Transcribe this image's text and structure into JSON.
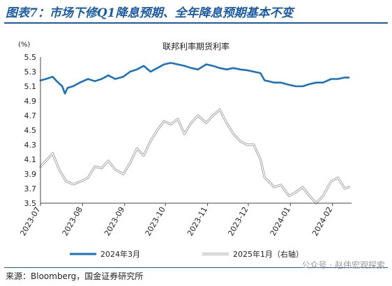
{
  "figure": {
    "title": "图表7：市场下修Q1降息预期、全年降息预期基本不变",
    "source": "来源：Bloomberg，国金证券研究所",
    "watermark": "公众号 · 赵伟宏观探索"
  },
  "chart_data": {
    "type": "line",
    "title": "联邦利率期货利率",
    "ylabel": "(%)",
    "ylim": [
      3.5,
      5.5
    ],
    "yticks": [
      3.5,
      3.7,
      3.9,
      4.1,
      4.3,
      4.5,
      4.7,
      4.9,
      5.1,
      5.3,
      5.5
    ],
    "xlim": [
      "2023-07-01",
      "2024-02-15"
    ],
    "xticks": [
      "2023-07",
      "2023-08",
      "2023-09",
      "2023-10",
      "2023-11",
      "2023-12",
      "2024-01",
      "2024-02"
    ],
    "grid": false,
    "legend_position": "bottom",
    "series": [
      {
        "name": "2024年3月",
        "color": "#1a72c0",
        "x": [
          "2023-07-01",
          "2023-07-05",
          "2023-07-10",
          "2023-07-13",
          "2023-07-17",
          "2023-07-19",
          "2023-07-21",
          "2023-07-25",
          "2023-07-30",
          "2023-08-05",
          "2023-08-10",
          "2023-08-15",
          "2023-08-20",
          "2023-08-25",
          "2023-08-31",
          "2023-09-05",
          "2023-09-10",
          "2023-09-15",
          "2023-09-20",
          "2023-09-25",
          "2023-09-30",
          "2023-10-05",
          "2023-10-10",
          "2023-10-15",
          "2023-10-20",
          "2023-10-25",
          "2023-10-31",
          "2023-11-05",
          "2023-11-10",
          "2023-11-15",
          "2023-11-20",
          "2023-11-25",
          "2023-11-30",
          "2023-12-05",
          "2023-12-10",
          "2023-12-13",
          "2023-12-16",
          "2023-12-20",
          "2023-12-25",
          "2023-12-31",
          "2024-01-05",
          "2024-01-10",
          "2024-01-15",
          "2024-01-20",
          "2024-01-25",
          "2024-01-31",
          "2024-02-05",
          "2024-02-10",
          "2024-02-13"
        ],
        "values": [
          5.18,
          5.2,
          5.23,
          5.17,
          5.1,
          5.0,
          5.08,
          5.1,
          5.15,
          5.2,
          5.17,
          5.2,
          5.25,
          5.2,
          5.23,
          5.3,
          5.33,
          5.38,
          5.3,
          5.35,
          5.4,
          5.42,
          5.4,
          5.38,
          5.35,
          5.33,
          5.4,
          5.38,
          5.35,
          5.33,
          5.35,
          5.33,
          5.32,
          5.3,
          5.28,
          5.18,
          5.17,
          5.15,
          5.15,
          5.12,
          5.1,
          5.1,
          5.13,
          5.15,
          5.15,
          5.2,
          5.2,
          5.22,
          5.22
        ]
      },
      {
        "name": "2025年1月（右轴）",
        "axis": "right",
        "color": "#bbbbbb",
        "x": [
          "2023-07-01",
          "2023-07-05",
          "2023-07-10",
          "2023-07-15",
          "2023-07-20",
          "2023-07-25",
          "2023-07-31",
          "2023-08-05",
          "2023-08-10",
          "2023-08-15",
          "2023-08-20",
          "2023-08-25",
          "2023-08-31",
          "2023-09-05",
          "2023-09-10",
          "2023-09-15",
          "2023-09-20",
          "2023-09-25",
          "2023-09-30",
          "2023-10-05",
          "2023-10-10",
          "2023-10-15",
          "2023-10-20",
          "2023-10-25",
          "2023-10-31",
          "2023-11-05",
          "2023-11-10",
          "2023-11-15",
          "2023-11-20",
          "2023-11-25",
          "2023-11-30",
          "2023-12-05",
          "2023-12-10",
          "2023-12-13",
          "2023-12-16",
          "2023-12-20",
          "2023-12-25",
          "2023-12-31",
          "2024-01-05",
          "2024-01-10",
          "2024-01-15",
          "2024-01-20",
          "2024-01-25",
          "2024-01-31",
          "2024-02-05",
          "2024-02-10",
          "2024-02-13"
        ],
        "values": [
          4.0,
          4.08,
          4.18,
          3.95,
          3.8,
          3.76,
          3.8,
          3.85,
          4.0,
          3.98,
          4.08,
          3.96,
          3.9,
          4.05,
          4.25,
          4.15,
          4.35,
          4.5,
          4.62,
          4.58,
          4.65,
          4.45,
          4.6,
          4.7,
          4.6,
          4.7,
          4.78,
          4.6,
          4.45,
          4.35,
          4.3,
          4.3,
          4.1,
          3.85,
          3.8,
          3.72,
          3.75,
          3.6,
          3.65,
          3.72,
          3.6,
          3.5,
          3.6,
          3.8,
          3.85,
          3.7,
          3.72
        ]
      }
    ]
  }
}
